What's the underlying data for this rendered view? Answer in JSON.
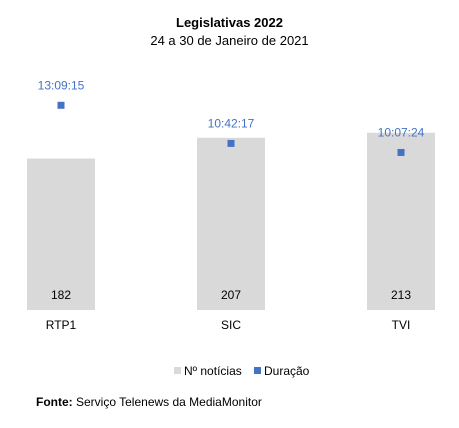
{
  "chart_data": {
    "type": "bar",
    "title": "Legislativas 2022",
    "subtitle": "24 a 30 de Janeiro de 2021",
    "categories": [
      "RTP1",
      "SIC",
      "TVI"
    ],
    "series": [
      {
        "name": "Nº notícias",
        "type": "bar",
        "values": [
          182,
          207,
          213
        ],
        "color": "#d9d9d9"
      },
      {
        "name": "Duração",
        "type": "scatter",
        "values": [
          "13:09:15",
          "10:42:17",
          "10:07:24"
        ],
        "color": "#4472c4"
      }
    ],
    "bar_axis_range": [
      0,
      250
    ],
    "duration_axis_range_hours": [
      0,
      16
    ],
    "grid": false,
    "legend_position": "bottom"
  },
  "footer": {
    "source_label": "Fonte:",
    "source_text": "Serviço Telenews da MediaMonitor"
  }
}
